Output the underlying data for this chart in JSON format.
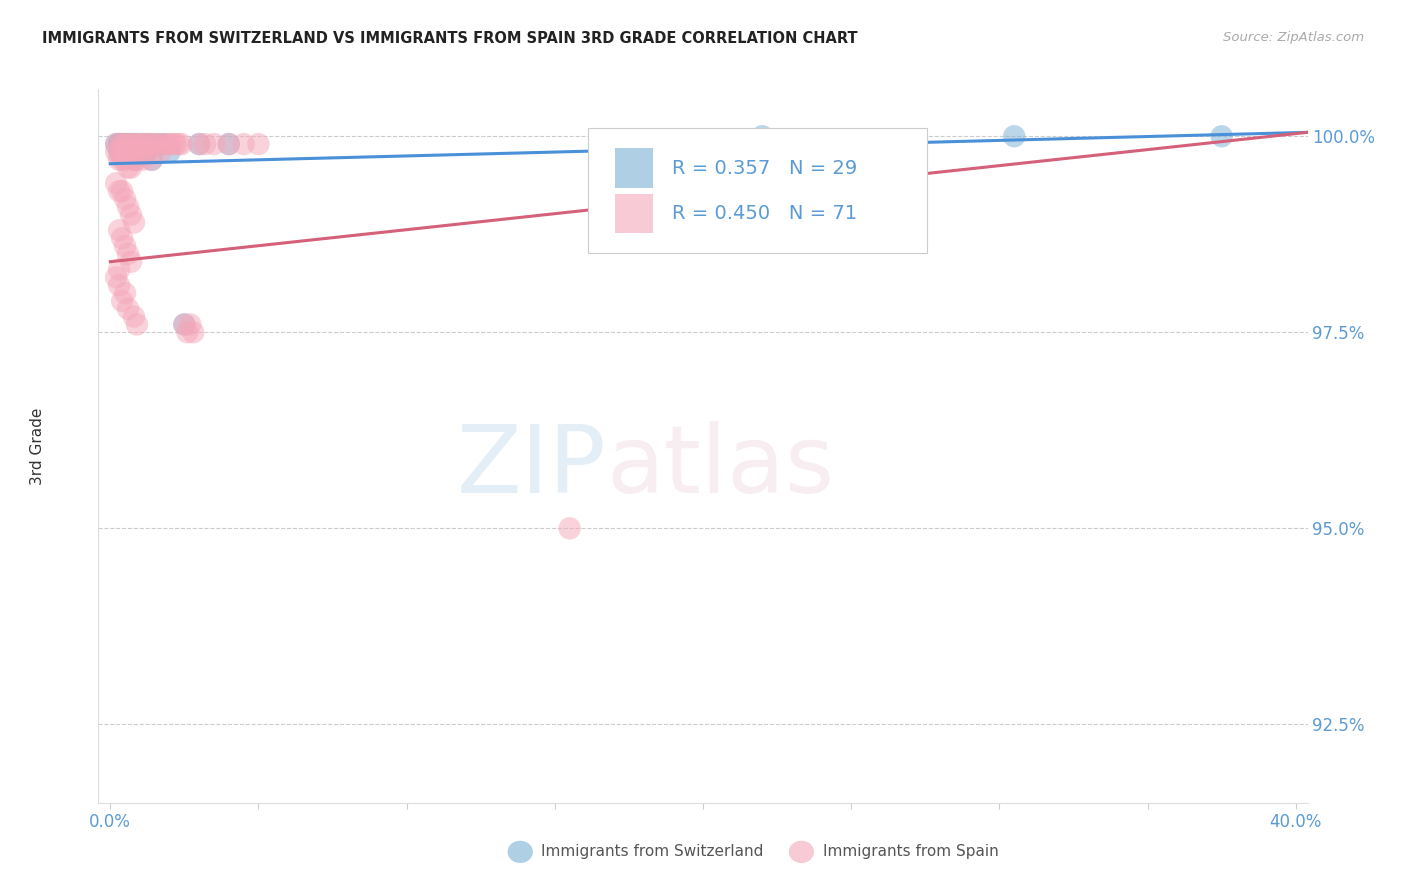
{
  "title": "IMMIGRANTS FROM SWITZERLAND VS IMMIGRANTS FROM SPAIN 3RD GRADE CORRELATION CHART",
  "source": "Source: ZipAtlas.com",
  "ylabel_label": "3rd Grade",
  "legend_label1": "Immigrants from Switzerland",
  "legend_label2": "Immigrants from Spain",
  "R_swiss": 0.357,
  "N_swiss": 29,
  "R_spain": 0.45,
  "N_spain": 71,
  "color_swiss": "#7bafd4",
  "color_spain": "#f4a7b9",
  "line_color_swiss": "#4a90d9",
  "line_color_spain": "#d4607a",
  "xlim_min": -0.004,
  "xlim_max": 0.404,
  "ylim_min": 0.915,
  "ylim_max": 1.006,
  "yticks": [
    0.925,
    0.95,
    0.975,
    1.0
  ],
  "ytick_labels": [
    "92.5%",
    "95.0%",
    "97.5%",
    "100.0%"
  ],
  "swiss_x": [
    0.002,
    0.003,
    0.003,
    0.004,
    0.004,
    0.005,
    0.005,
    0.006,
    0.006,
    0.007,
    0.007,
    0.008,
    0.008,
    0.009,
    0.01,
    0.011,
    0.012,
    0.013,
    0.014,
    0.016,
    0.018,
    0.02,
    0.025,
    0.03,
    0.04,
    0.22,
    0.305,
    0.375,
    0.003
  ],
  "swiss_y": [
    0.999,
    0.999,
    0.998,
    0.999,
    0.998,
    0.999,
    0.998,
    0.999,
    0.999,
    0.999,
    0.998,
    0.999,
    0.997,
    0.999,
    0.998,
    0.999,
    0.998,
    0.999,
    0.997,
    0.999,
    0.999,
    0.998,
    0.976,
    0.999,
    0.999,
    1.0,
    1.0,
    1.0,
    0.999
  ],
  "spain_x": [
    0.002,
    0.002,
    0.003,
    0.003,
    0.003,
    0.004,
    0.004,
    0.004,
    0.005,
    0.005,
    0.005,
    0.006,
    0.006,
    0.006,
    0.007,
    0.007,
    0.007,
    0.008,
    0.008,
    0.009,
    0.009,
    0.01,
    0.01,
    0.011,
    0.011,
    0.012,
    0.012,
    0.013,
    0.014,
    0.014,
    0.015,
    0.016,
    0.017,
    0.018,
    0.019,
    0.02,
    0.021,
    0.022,
    0.023,
    0.024,
    0.025,
    0.026,
    0.027,
    0.028,
    0.03,
    0.032,
    0.035,
    0.04,
    0.045,
    0.05,
    0.002,
    0.003,
    0.004,
    0.005,
    0.006,
    0.007,
    0.008,
    0.003,
    0.004,
    0.005,
    0.006,
    0.007,
    0.003,
    0.155,
    0.002,
    0.003,
    0.005,
    0.004,
    0.006,
    0.008,
    0.009
  ],
  "spain_y": [
    0.999,
    0.998,
    0.999,
    0.998,
    0.997,
    0.999,
    0.998,
    0.997,
    0.999,
    0.998,
    0.997,
    0.999,
    0.998,
    0.996,
    0.999,
    0.998,
    0.996,
    0.999,
    0.997,
    0.999,
    0.997,
    0.999,
    0.998,
    0.999,
    0.997,
    0.999,
    0.998,
    0.999,
    0.999,
    0.997,
    0.999,
    0.999,
    0.998,
    0.999,
    0.999,
    0.999,
    0.999,
    0.999,
    0.999,
    0.999,
    0.976,
    0.975,
    0.976,
    0.975,
    0.999,
    0.999,
    0.999,
    0.999,
    0.999,
    0.999,
    0.994,
    0.993,
    0.993,
    0.992,
    0.991,
    0.99,
    0.989,
    0.988,
    0.987,
    0.986,
    0.985,
    0.984,
    0.983,
    0.95,
    0.982,
    0.981,
    0.98,
    0.979,
    0.978,
    0.977,
    0.976
  ],
  "swiss_line_x0": 0.0,
  "swiss_line_x1": 0.404,
  "swiss_line_y0": 0.9965,
  "swiss_line_y1": 1.0005,
  "spain_line_x0": 0.0,
  "spain_line_x1": 0.404,
  "spain_line_y0": 0.984,
  "spain_line_y1": 1.0005
}
